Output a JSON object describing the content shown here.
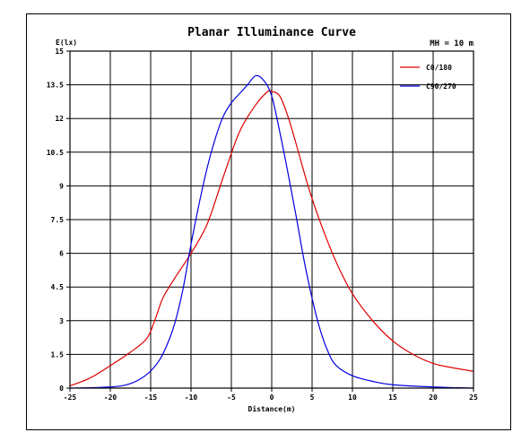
{
  "chart_data": {
    "type": "line",
    "title": "Planar Illuminance Curve",
    "subtitle": "MH = 10 m",
    "xlabel": "Distance(m)",
    "ylabel": "E(lx)",
    "xlim": [
      -25,
      25
    ],
    "ylim": [
      0,
      15
    ],
    "x_ticks": [
      -25,
      -20,
      -15,
      -10,
      -5,
      0,
      5,
      10,
      15,
      20,
      25
    ],
    "y_ticks": [
      0,
      1.5,
      3,
      4.5,
      6,
      7.5,
      9,
      10.5,
      12,
      13.5,
      15
    ],
    "x_tick_labels": [
      "-25",
      "-20",
      "-15",
      "-10",
      "-5",
      "0",
      "5",
      "10",
      "15",
      "20",
      "25"
    ],
    "y_tick_labels": [
      "0",
      "1.5",
      "3",
      "4.5",
      "6",
      "7.5",
      "9",
      "10.5",
      "12",
      "13.5",
      "15"
    ],
    "grid": true,
    "legend_position": "top-right",
    "series": [
      {
        "name": "C0/180",
        "color": "#e00000",
        "points": [
          [
            -25,
            0.1
          ],
          [
            -22.5,
            0.45
          ],
          [
            -20,
            1.0
          ],
          [
            -17.5,
            1.6
          ],
          [
            -15.5,
            2.2
          ],
          [
            -14.5,
            3.0
          ],
          [
            -13.5,
            4.0
          ],
          [
            -12,
            4.9
          ],
          [
            -10,
            6.0
          ],
          [
            -8,
            7.3
          ],
          [
            -6,
            9.4
          ],
          [
            -4,
            11.4
          ],
          [
            -2,
            12.6
          ],
          [
            -0.5,
            13.2
          ],
          [
            0,
            13.2
          ],
          [
            1,
            13.0
          ],
          [
            2,
            12.1
          ],
          [
            3,
            10.9
          ],
          [
            4.5,
            9.0
          ],
          [
            6,
            7.4
          ],
          [
            8,
            5.6
          ],
          [
            10,
            4.2
          ],
          [
            12.5,
            3.0
          ],
          [
            15,
            2.1
          ],
          [
            17.5,
            1.5
          ],
          [
            20,
            1.1
          ],
          [
            22.5,
            0.9
          ],
          [
            25,
            0.75
          ]
        ]
      },
      {
        "name": "C90/270",
        "color": "#0000e0",
        "points": [
          [
            -25,
            0.0
          ],
          [
            -20,
            0.05
          ],
          [
            -17.5,
            0.2
          ],
          [
            -15.5,
            0.6
          ],
          [
            -14,
            1.2
          ],
          [
            -13,
            1.9
          ],
          [
            -12,
            2.9
          ],
          [
            -11,
            4.4
          ],
          [
            -10,
            6.4
          ],
          [
            -9,
            8.2
          ],
          [
            -8,
            9.8
          ],
          [
            -7,
            11.1
          ],
          [
            -6,
            12.1
          ],
          [
            -5,
            12.7
          ],
          [
            -4,
            13.1
          ],
          [
            -3,
            13.5
          ],
          [
            -2,
            13.9
          ],
          [
            -1,
            13.7
          ],
          [
            0,
            13.0
          ],
          [
            1,
            11.4
          ],
          [
            2,
            9.6
          ],
          [
            3,
            7.7
          ],
          [
            4,
            5.7
          ],
          [
            5,
            4.0
          ],
          [
            6,
            2.6
          ],
          [
            7,
            1.6
          ],
          [
            8,
            1.0
          ],
          [
            10,
            0.55
          ],
          [
            12.5,
            0.3
          ],
          [
            15,
            0.15
          ],
          [
            20,
            0.05
          ],
          [
            25,
            0.0
          ]
        ]
      }
    ]
  }
}
